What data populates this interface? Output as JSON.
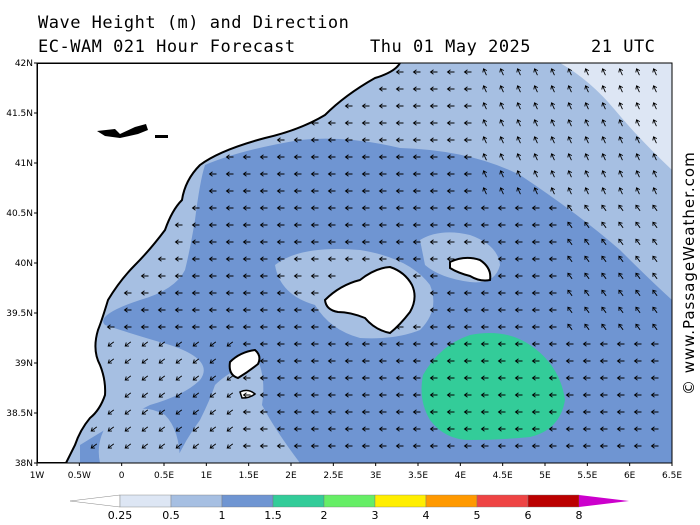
{
  "header": {
    "title": "Wave Height (m) and Direction",
    "model": "EC-WAM 021 Hour Forecast",
    "date": "Thu 01 May 2025",
    "time": "21 UTC"
  },
  "credit": "© www.PassageWeather.com",
  "axes": {
    "lat_labels": [
      "42N",
      "41.5N",
      "41N",
      "40.5N",
      "40N",
      "39.5N",
      "39N",
      "38.5N",
      "38N"
    ],
    "lon_labels": [
      "1W",
      "0.5W",
      "0",
      "0.5E",
      "1E",
      "1.5E",
      "2E",
      "2.5E",
      "3E",
      "3.5E",
      "4E",
      "4.5E",
      "5E",
      "5.5E",
      "6E",
      "6.5E"
    ],
    "lat_range": [
      38,
      42
    ],
    "lon_range": [
      -1,
      6.5
    ]
  },
  "map": {
    "wave_direction": "from east-southeast; arrows point west / northwest",
    "colors": {
      "sea_025_05": "#dde6f4",
      "sea_05_1": "#a6bfe2",
      "sea_1_15": "#6f95d2",
      "sea_15_2": "#33cc99",
      "land": "#ffffff",
      "coast": "#000000"
    }
  },
  "legend": {
    "labels": [
      "0.25",
      "0.5",
      "1",
      "1.5",
      "2",
      "3",
      "4",
      "5",
      "6",
      "8"
    ],
    "colors": [
      "#dde6f4",
      "#a6bfe2",
      "#6f95d2",
      "#33cc99",
      "#66ee66",
      "#ffee00",
      "#ff9900",
      "#ee4444",
      "#bb0000",
      "#cc00cc"
    ]
  }
}
